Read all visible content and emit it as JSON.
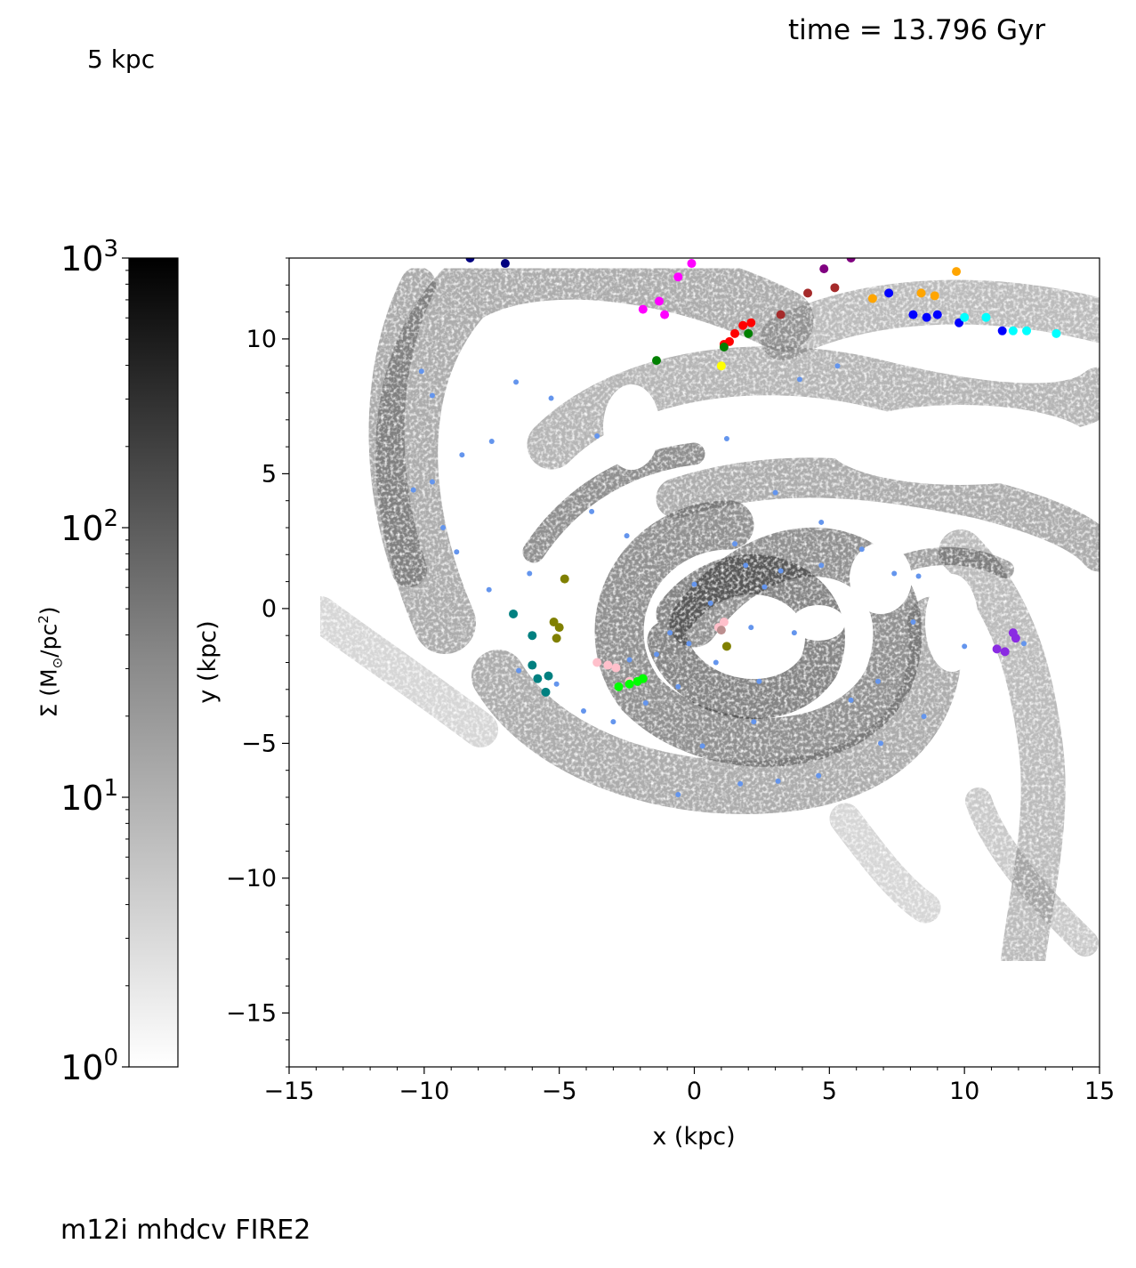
{
  "header": {
    "time_label": "time = 13.796 Gyr",
    "scale_label": "5 kpc",
    "sim_label": "m12i mhdcv FIRE2"
  },
  "colorbar": {
    "label_prefix": "Σ (M",
    "label_mid": "/pc",
    "label_sup": "2",
    "label_suffix": ")",
    "scale": "log",
    "range": [
      1,
      1000
    ],
    "ticks": [
      {
        "base": "10",
        "exp": "0",
        "value": 1
      },
      {
        "base": "10",
        "exp": "1",
        "value": 10
      },
      {
        "base": "10",
        "exp": "2",
        "value": 100
      },
      {
        "base": "10",
        "exp": "3",
        "value": 1000
      }
    ],
    "cmap": [
      "#ffffff",
      "#000000"
    ]
  },
  "chart_data": {
    "type": "scatter",
    "xlabel": "x (kpc)",
    "ylabel": "y (kpc)",
    "xlim": [
      -15,
      15
    ],
    "ylim": [
      -17,
      13
    ],
    "xticks": [
      -15,
      -10,
      -5,
      0,
      5,
      10,
      15
    ],
    "xtick_labels": [
      "−15",
      "−10",
      "−5",
      "0",
      "5",
      "10",
      "15"
    ],
    "yticks": [
      -15,
      -10,
      -5,
      0,
      5,
      10
    ],
    "ytick_labels": [
      "−15",
      "−10",
      "−5",
      "0",
      "5",
      "10"
    ],
    "background": "gas surface density map (grayscale, log)",
    "series": [
      {
        "color": "#ff0000",
        "points": [
          [
            1.1,
            9.8
          ],
          [
            1.3,
            9.9
          ],
          [
            1.5,
            10.2
          ],
          [
            1.8,
            10.5
          ],
          [
            2.1,
            10.6
          ]
        ]
      },
      {
        "color": "#ff00ff",
        "points": [
          [
            -1.9,
            11.1
          ],
          [
            -1.3,
            11.4
          ],
          [
            -0.6,
            12.3
          ],
          [
            -1.1,
            10.9
          ],
          [
            -0.1,
            12.8
          ]
        ]
      },
      {
        "color": "#ffa500",
        "points": [
          [
            6.6,
            11.5
          ],
          [
            8.4,
            11.7
          ],
          [
            8.9,
            11.6
          ],
          [
            9.7,
            12.5
          ]
        ]
      },
      {
        "color": "#0000ff",
        "points": [
          [
            7.2,
            11.7
          ],
          [
            8.1,
            10.9
          ],
          [
            8.6,
            10.8
          ],
          [
            9.0,
            10.9
          ],
          [
            9.8,
            10.6
          ],
          [
            11.4,
            10.3
          ]
        ]
      },
      {
        "color": "#00ffff",
        "points": [
          [
            10.0,
            10.8
          ],
          [
            10.8,
            10.8
          ],
          [
            11.8,
            10.3
          ],
          [
            12.3,
            10.3
          ],
          [
            13.4,
            10.2
          ]
        ]
      },
      {
        "color": "#ffff00",
        "points": [
          [
            1.0,
            9.0
          ]
        ]
      },
      {
        "color": "#008000",
        "points": [
          [
            -1.4,
            9.2
          ],
          [
            1.1,
            9.7
          ],
          [
            2.0,
            10.2
          ]
        ]
      },
      {
        "color": "#a52a2a",
        "points": [
          [
            3.2,
            10.9
          ],
          [
            4.2,
            11.7
          ],
          [
            5.2,
            11.9
          ]
        ]
      },
      {
        "color": "#800080",
        "points": [
          [
            4.8,
            12.6
          ],
          [
            5.8,
            13.0
          ]
        ]
      },
      {
        "color": "#000080",
        "points": [
          [
            -7.0,
            12.8
          ],
          [
            -8.3,
            13.0
          ]
        ]
      },
      {
        "color": "#8a2be2",
        "points": [
          [
            11.8,
            -0.9
          ],
          [
            11.9,
            -1.1
          ],
          [
            11.5,
            -1.6
          ],
          [
            11.2,
            -1.5
          ]
        ]
      },
      {
        "color": "#ffc0cb",
        "points": [
          [
            -3.6,
            -2.0
          ],
          [
            -3.2,
            -2.1
          ],
          [
            -2.9,
            -2.2
          ],
          [
            -2.4,
            -2.7
          ],
          [
            0.9,
            -0.7
          ],
          [
            1.1,
            -0.5
          ]
        ]
      },
      {
        "color": "#bc8f8f",
        "points": [
          [
            1.0,
            -0.8
          ]
        ]
      },
      {
        "color": "#00ff00",
        "points": [
          [
            -2.8,
            -2.9
          ],
          [
            -2.4,
            -2.8
          ],
          [
            -2.1,
            -2.7
          ],
          [
            -1.9,
            -2.6
          ]
        ]
      },
      {
        "color": "#808000",
        "points": [
          [
            -5.2,
            -0.5
          ],
          [
            -5.0,
            -0.7
          ],
          [
            -4.8,
            1.1
          ],
          [
            -5.1,
            -1.1
          ],
          [
            1.2,
            -1.4
          ]
        ]
      },
      {
        "color": "#008080",
        "points": [
          [
            -6.0,
            -2.1
          ],
          [
            -5.8,
            -2.6
          ],
          [
            -5.5,
            -3.1
          ],
          [
            -5.4,
            -2.5
          ],
          [
            -6.0,
            -1.0
          ],
          [
            -6.7,
            -0.2
          ]
        ]
      },
      {
        "color": "#6495ed",
        "points": [
          [
            -7.6,
            0.7
          ],
          [
            -8.8,
            2.1
          ],
          [
            -9.3,
            3.0
          ],
          [
            -6.1,
            1.3
          ],
          [
            -5.1,
            -2.8
          ],
          [
            -4.1,
            -3.8
          ],
          [
            -2.4,
            -1.9
          ],
          [
            -1.4,
            -1.7
          ],
          [
            -0.2,
            -1.3
          ],
          [
            0.6,
            0.2
          ],
          [
            1.9,
            1.6
          ],
          [
            2.6,
            0.8
          ],
          [
            2.1,
            -0.7
          ],
          [
            0.8,
            -2.0
          ],
          [
            -0.9,
            -0.9
          ],
          [
            0.0,
            0.9
          ],
          [
            1.5,
            2.4
          ],
          [
            3.2,
            1.4
          ],
          [
            3.7,
            -0.9
          ],
          [
            2.2,
            -4.2
          ],
          [
            4.6,
            -6.2
          ],
          [
            3.1,
            -6.4
          ],
          [
            1.7,
            -6.5
          ],
          [
            0.3,
            -5.1
          ],
          [
            -0.6,
            -6.9
          ],
          [
            6.9,
            -5.0
          ],
          [
            8.5,
            -4.0
          ],
          [
            8.1,
            -0.5
          ],
          [
            7.4,
            1.3
          ],
          [
            8.3,
            1.2
          ],
          [
            10.0,
            -1.4
          ],
          [
            12.2,
            -1.3
          ],
          [
            6.2,
            2.2
          ],
          [
            4.7,
            3.2
          ],
          [
            3.0,
            4.3
          ],
          [
            1.2,
            6.3
          ],
          [
            -3.6,
            6.4
          ],
          [
            -5.3,
            7.8
          ],
          [
            -7.5,
            6.2
          ],
          [
            -8.6,
            5.7
          ],
          [
            -9.7,
            7.9
          ],
          [
            -10.1,
            8.8
          ],
          [
            -6.6,
            8.4
          ],
          [
            -3.8,
            3.6
          ],
          [
            -2.5,
            2.7
          ],
          [
            3.9,
            8.5
          ],
          [
            5.3,
            9.0
          ],
          [
            4.7,
            1.6
          ],
          [
            2.4,
            -2.7
          ],
          [
            -0.6,
            -2.9
          ],
          [
            -1.8,
            -3.5
          ],
          [
            -3.0,
            -4.2
          ],
          [
            -6.5,
            -2.3
          ],
          [
            -10.4,
            4.4
          ],
          [
            -9.7,
            4.7
          ],
          [
            5.8,
            -3.4
          ],
          [
            6.8,
            -2.7
          ]
        ]
      }
    ]
  }
}
